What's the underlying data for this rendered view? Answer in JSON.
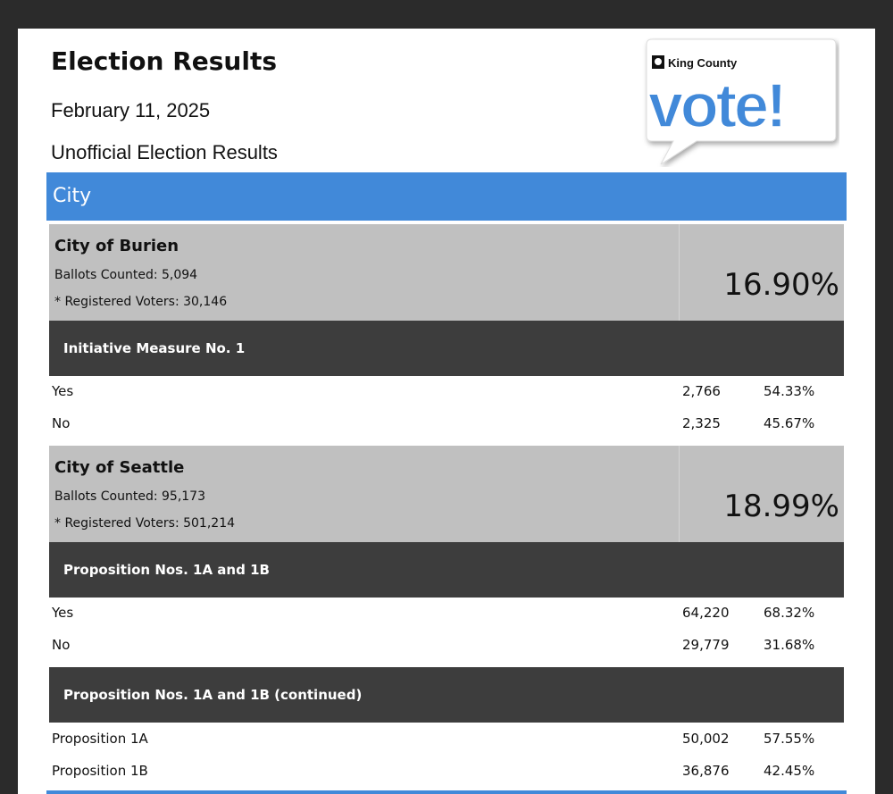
{
  "header": {
    "title": "Election Results",
    "date": "February 11, 2025",
    "subtitle": "Unofficial Election Results"
  },
  "logo": {
    "org": "King County",
    "word": "vote!",
    "colors": {
      "primary": "#4189d9",
      "outline": "#ffffff"
    }
  },
  "section": {
    "label": "City",
    "color": "#4189d9"
  },
  "areas": [
    {
      "name": "City of Burien",
      "ballots": "Ballots Counted: 5,094",
      "registered": "* Registered Voters: 30,146",
      "turnout": "16.90%"
    },
    {
      "name": "City of Seattle",
      "ballots": "Ballots Counted: 95,173",
      "registered": "* Registered Voters: 501,214",
      "turnout": "18.99%"
    }
  ],
  "measures": [
    {
      "title": "Initiative Measure No. 1",
      "rows": [
        {
          "label": "Yes",
          "votes": "2,766",
          "pct": "54.33%"
        },
        {
          "label": "No",
          "votes": "2,325",
          "pct": "45.67%"
        }
      ]
    },
    {
      "title": "Proposition Nos. 1A and 1B",
      "rows": [
        {
          "label": "Yes",
          "votes": "64,220",
          "pct": "68.32%"
        },
        {
          "label": "No",
          "votes": "29,779",
          "pct": "31.68%"
        }
      ]
    },
    {
      "title": "Proposition Nos. 1A and 1B (continued)",
      "rows": [
        {
          "label": "Proposition 1A",
          "votes": "50,002",
          "pct": "57.55%"
        },
        {
          "label": "Proposition 1B",
          "votes": "36,876",
          "pct": "42.45%"
        }
      ]
    }
  ]
}
